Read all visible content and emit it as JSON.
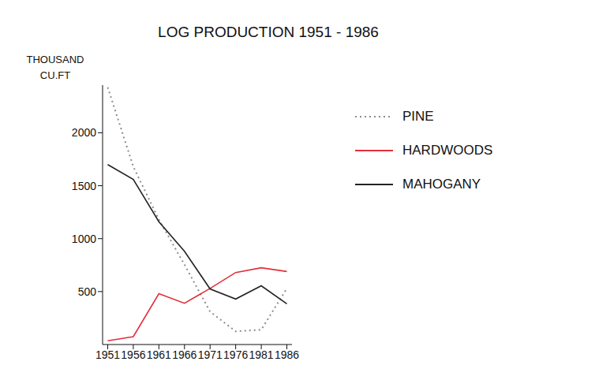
{
  "chart_data": {
    "type": "line",
    "title": "LOG PRODUCTION 1951 - 1986",
    "y_label": "THOUSAND CU.FT",
    "x": [
      1951,
      1956,
      1961,
      1966,
      1971,
      1976,
      1981,
      1986
    ],
    "xlim": [
      1950,
      1987
    ],
    "xticks": [
      1951,
      1956,
      1961,
      1966,
      1971,
      1976,
      1981,
      1986
    ],
    "ylim": [
      0,
      2450
    ],
    "yticks": [
      500,
      1000,
      1500,
      2000
    ],
    "grid": false,
    "legend": "upper right",
    "series": [
      {
        "name": "PINE",
        "color": "#8c8c8c",
        "line_style": "dotted",
        "values": [
          2430,
          1680,
          1180,
          755,
          310,
          125,
          140,
          530
        ]
      },
      {
        "name": "HARDWOODS",
        "color": "#e0303a",
        "line_style": "solid",
        "values": [
          35,
          75,
          480,
          390,
          530,
          680,
          725,
          690
        ]
      },
      {
        "name": "MAHOGANY",
        "color": "#222222",
        "line_style": "solid",
        "values": [
          1700,
          1560,
          1160,
          880,
          525,
          430,
          555,
          385
        ]
      }
    ]
  }
}
